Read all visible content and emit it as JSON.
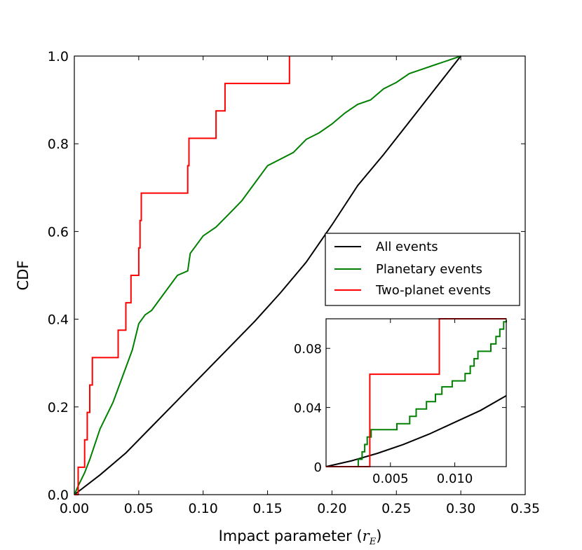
{
  "chart_data": {
    "type": "line",
    "xlabel": "Impact parameter (",
    "xlabel_symbol": "r",
    "xlabel_subscript": "E",
    "xlabel_close": ")",
    "ylabel": "CDF",
    "xlim": [
      0.0,
      0.35
    ],
    "ylim": [
      0.0,
      1.0
    ],
    "xticks": [
      "0.00",
      "0.05",
      "0.10",
      "0.15",
      "0.20",
      "0.25",
      "0.30",
      "0.35"
    ],
    "yticks": [
      "0.0",
      "0.2",
      "0.4",
      "0.6",
      "0.8",
      "1.0"
    ],
    "legend": {
      "position": "center-right",
      "entries": [
        "All events",
        "Planetary events",
        "Two-planet events"
      ]
    },
    "series": [
      {
        "name": "All events",
        "color": "#000000",
        "step": false,
        "points": [
          [
            0.0,
            0.0
          ],
          [
            0.02,
            0.045
          ],
          [
            0.04,
            0.095
          ],
          [
            0.06,
            0.155
          ],
          [
            0.08,
            0.215
          ],
          [
            0.1,
            0.275
          ],
          [
            0.12,
            0.335
          ],
          [
            0.14,
            0.395
          ],
          [
            0.16,
            0.46
          ],
          [
            0.18,
            0.53
          ],
          [
            0.2,
            0.615
          ],
          [
            0.22,
            0.705
          ],
          [
            0.24,
            0.775
          ],
          [
            0.26,
            0.85
          ],
          [
            0.28,
            0.925
          ],
          [
            0.3,
            1.0
          ]
        ]
      },
      {
        "name": "Planetary events",
        "color": "#008000",
        "step": false,
        "points": [
          [
            0.0,
            0.0
          ],
          [
            0.003,
            0.02
          ],
          [
            0.008,
            0.05
          ],
          [
            0.012,
            0.08
          ],
          [
            0.02,
            0.15
          ],
          [
            0.03,
            0.21
          ],
          [
            0.04,
            0.29
          ],
          [
            0.045,
            0.33
          ],
          [
            0.05,
            0.39
          ],
          [
            0.055,
            0.41
          ],
          [
            0.06,
            0.42
          ],
          [
            0.07,
            0.46
          ],
          [
            0.08,
            0.5
          ],
          [
            0.088,
            0.51
          ],
          [
            0.09,
            0.55
          ],
          [
            0.1,
            0.59
          ],
          [
            0.11,
            0.61
          ],
          [
            0.12,
            0.64
          ],
          [
            0.13,
            0.67
          ],
          [
            0.14,
            0.71
          ],
          [
            0.15,
            0.75
          ],
          [
            0.16,
            0.765
          ],
          [
            0.17,
            0.78
          ],
          [
            0.18,
            0.81
          ],
          [
            0.19,
            0.825
          ],
          [
            0.2,
            0.845
          ],
          [
            0.21,
            0.87
          ],
          [
            0.22,
            0.89
          ],
          [
            0.23,
            0.9
          ],
          [
            0.24,
            0.925
          ],
          [
            0.25,
            0.94
          ],
          [
            0.26,
            0.96
          ],
          [
            0.27,
            0.97
          ],
          [
            0.28,
            0.98
          ],
          [
            0.29,
            0.99
          ],
          [
            0.3,
            1.0
          ]
        ]
      },
      {
        "name": "Two-planet events",
        "color": "#ff0000",
        "step": true,
        "points": [
          [
            0.0,
            0.0
          ],
          [
            0.003,
            0.0625
          ],
          [
            0.008,
            0.125
          ],
          [
            0.01,
            0.1875
          ],
          [
            0.012,
            0.25
          ],
          [
            0.014,
            0.3125
          ],
          [
            0.034,
            0.375
          ],
          [
            0.04,
            0.4375
          ],
          [
            0.044,
            0.5
          ],
          [
            0.05,
            0.5625
          ],
          [
            0.051,
            0.625
          ],
          [
            0.052,
            0.6875
          ],
          [
            0.088,
            0.75
          ],
          [
            0.089,
            0.8125
          ],
          [
            0.11,
            0.875
          ],
          [
            0.117,
            0.9375
          ],
          [
            0.167,
            1.0
          ]
        ]
      }
    ],
    "inset": {
      "xlim": [
        0.0,
        0.014
      ],
      "ylim": [
        0.0,
        0.1
      ],
      "xticks": [
        "0.005",
        "0.010"
      ],
      "yticks": [
        "0",
        "0.04",
        "0.08"
      ],
      "series": [
        {
          "name": "All events",
          "color": "#000000",
          "step": false,
          "points": [
            [
              0.0,
              0.0
            ],
            [
              0.002,
              0.004
            ],
            [
              0.004,
              0.009
            ],
            [
              0.006,
              0.015
            ],
            [
              0.008,
              0.022
            ],
            [
              0.01,
              0.03
            ],
            [
              0.012,
              0.038
            ],
            [
              0.014,
              0.048
            ]
          ]
        },
        {
          "name": "Planetary events",
          "color": "#008000",
          "step": true,
          "points": [
            [
              0.0,
              0.0
            ],
            [
              0.0025,
              0.005
            ],
            [
              0.0028,
              0.01
            ],
            [
              0.003,
              0.015
            ],
            [
              0.0032,
              0.02
            ],
            [
              0.0035,
              0.025
            ],
            [
              0.0055,
              0.029
            ],
            [
              0.0065,
              0.034
            ],
            [
              0.007,
              0.039
            ],
            [
              0.0078,
              0.044
            ],
            [
              0.0085,
              0.049
            ],
            [
              0.009,
              0.054
            ],
            [
              0.0098,
              0.058
            ],
            [
              0.0108,
              0.063
            ],
            [
              0.0112,
              0.068
            ],
            [
              0.0115,
              0.073
            ],
            [
              0.0118,
              0.078
            ],
            [
              0.0128,
              0.083
            ],
            [
              0.0132,
              0.088
            ],
            [
              0.0135,
              0.093
            ],
            [
              0.0138,
              0.098
            ],
            [
              0.014,
              0.099
            ]
          ]
        },
        {
          "name": "Two-planet events",
          "color": "#ff0000",
          "step": true,
          "points": [
            [
              0.0,
              0.0
            ],
            [
              0.0034,
              0.0625
            ],
            [
              0.0088,
              0.1
            ],
            [
              0.014,
              0.1
            ]
          ]
        }
      ]
    }
  }
}
